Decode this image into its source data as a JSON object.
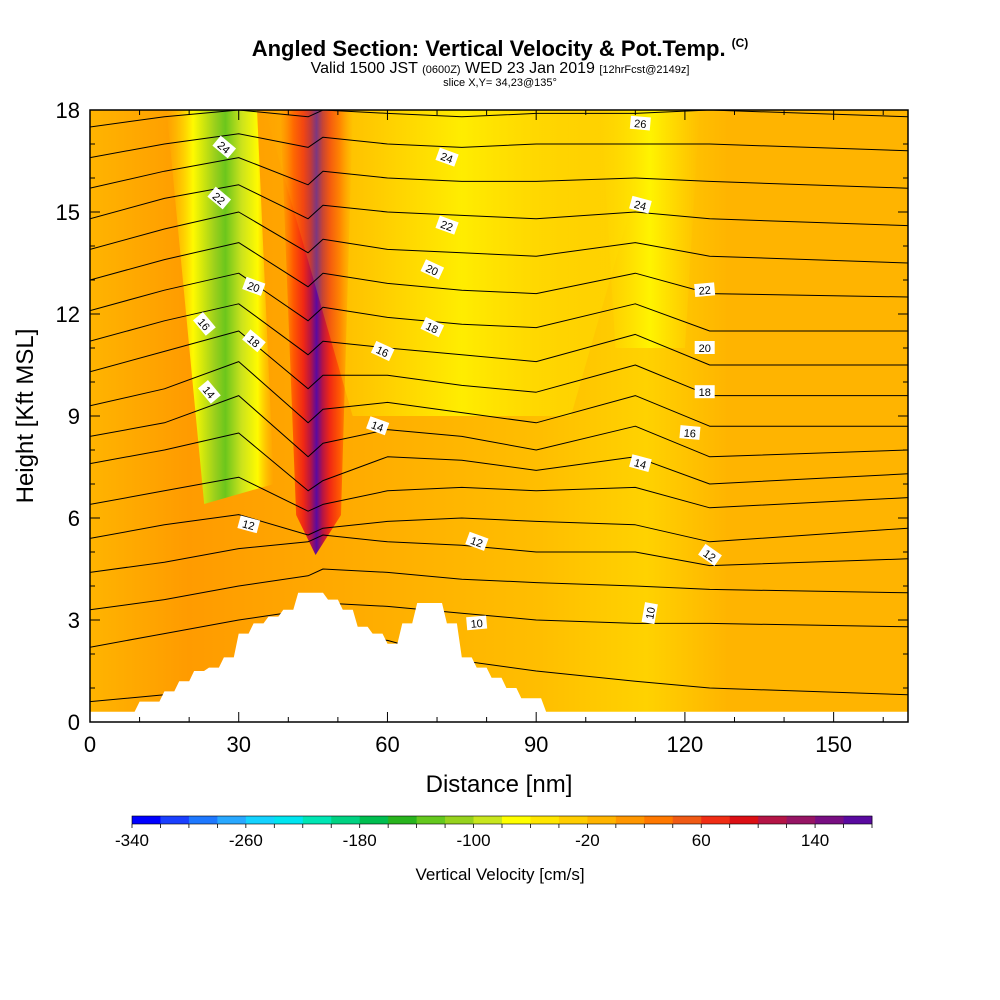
{
  "header": {
    "title": "Angled Section: Vertical Velocity & Pot.Temp.",
    "title_mark": "(C)",
    "valid_prefix": "Valid 1500 JST",
    "valid_utc": "(0600Z)",
    "valid_date": "WED 23 Jan 2019",
    "forecast": "[12hrFcst@2149z]",
    "slice": "slice X,Y= 34,23@135°"
  },
  "chart_data": {
    "type": "heatmap",
    "xlabel": "Distance [nm]",
    "ylabel": "Height [Kft MSL]",
    "xlim": [
      0,
      165
    ],
    "ylim": [
      0,
      18
    ],
    "xticks": [
      0,
      30,
      60,
      90,
      120,
      150
    ],
    "yticks": [
      0,
      3,
      6,
      9,
      12,
      15,
      18
    ],
    "grid": false,
    "colorbar": {
      "label": "Vertical Velocity [cm/s]",
      "placement": "bottom",
      "range": [
        -340,
        180
      ],
      "step": 20,
      "ticks": [
        -340,
        -260,
        -180,
        -100,
        -20,
        60,
        140
      ],
      "colors": [
        "#0000ff",
        "#1a3fff",
        "#1e78ff",
        "#28a8ff",
        "#14d2ff",
        "#00e5f0",
        "#00e6b4",
        "#00d282",
        "#00be50",
        "#28b41e",
        "#64c81e",
        "#96d21e",
        "#c8e61e",
        "#ffff00",
        "#ffe600",
        "#ffcd00",
        "#ffb400",
        "#ff9600",
        "#ff7800",
        "#f05a14",
        "#f02d14",
        "#dc0f14",
        "#b41446",
        "#961464",
        "#780f82",
        "#5a0aa0"
      ]
    },
    "velocity_features": [
      {
        "name": "updraft",
        "x": [
          44,
          47
        ],
        "y_range": [
          5.5,
          18
        ],
        "peak_cm_s": 160
      },
      {
        "name": "downdraft",
        "x": [
          19,
          28
        ],
        "y_range": [
          7,
          18
        ],
        "min_cm_s": -160
      },
      {
        "name": "weak-subsidence",
        "x": [
          108,
          118
        ],
        "y_range": [
          11,
          18
        ],
        "min_cm_s": -60
      },
      {
        "name": "weak-subsidence",
        "x": [
          55,
          95
        ],
        "y_range": [
          9,
          18
        ],
        "min_cm_s": -40
      }
    ],
    "terrain_kft": {
      "x": [
        0,
        9,
        10,
        14,
        15,
        17,
        18,
        20,
        21,
        23,
        24,
        26,
        27,
        29,
        30,
        32,
        33,
        35,
        36,
        38,
        39,
        41,
        42,
        47,
        48,
        50,
        51,
        53,
        54,
        56,
        57,
        59,
        60,
        62,
        63,
        65,
        66,
        71,
        72,
        74,
        75,
        77,
        78,
        80,
        81,
        83,
        84,
        86,
        87,
        91,
        92,
        165
      ],
      "y": [
        0.3,
        0.3,
        0.6,
        0.6,
        0.9,
        0.9,
        1.2,
        1.2,
        1.5,
        1.5,
        1.6,
        1.6,
        1.9,
        1.9,
        2.6,
        2.6,
        2.9,
        2.9,
        3.1,
        3.1,
        3.3,
        3.3,
        3.8,
        3.8,
        3.6,
        3.6,
        3.3,
        3.3,
        2.8,
        2.8,
        2.6,
        2.6,
        2.3,
        2.3,
        2.9,
        2.9,
        3.5,
        3.5,
        2.9,
        2.9,
        1.9,
        1.9,
        1.6,
        1.6,
        1.3,
        1.3,
        1.0,
        1.0,
        0.7,
        0.7,
        0.3,
        0.3
      ]
    },
    "theta_contours_c": {
      "interval": 1,
      "profile_x": [
        0,
        15,
        30,
        44,
        47,
        60,
        75,
        90,
        110,
        125,
        165
      ],
      "series": [
        {
          "y": [
            0.6,
            0.8,
            1.3,
            2.4,
            2.6,
            2.4,
            1.8,
            1.5,
            1.2,
            1.0,
            0.8
          ]
        },
        {
          "y": [
            2.2,
            2.6,
            3.0,
            3.3,
            3.5,
            3.4,
            3.2,
            3.0,
            2.9,
            2.9,
            2.8
          ]
        },
        {
          "y": [
            3.3,
            3.6,
            4.0,
            4.3,
            4.5,
            4.4,
            4.2,
            4.1,
            4.0,
            3.9,
            3.8
          ]
        },
        {
          "y": [
            4.4,
            4.7,
            5.1,
            5.3,
            5.5,
            5.3,
            5.2,
            5.0,
            5.0,
            4.6,
            4.8
          ]
        },
        {
          "y": [
            5.4,
            5.8,
            6.1,
            5.5,
            5.7,
            5.9,
            6.0,
            5.9,
            5.8,
            5.3,
            5.7
          ]
        },
        {
          "y": [
            6.4,
            6.8,
            7.2,
            6.2,
            6.4,
            6.8,
            6.9,
            6.8,
            6.9,
            6.3,
            6.6
          ]
        },
        {
          "y": [
            7.6,
            8.0,
            8.5,
            6.8,
            7.1,
            7.8,
            7.7,
            7.4,
            7.8,
            7.0,
            7.3
          ]
        },
        {
          "y": [
            8.4,
            8.8,
            9.6,
            7.8,
            8.2,
            8.6,
            8.4,
            8.0,
            8.7,
            7.8,
            8.0
          ]
        },
        {
          "y": [
            9.3,
            9.8,
            10.6,
            8.8,
            9.2,
            9.4,
            9.1,
            8.8,
            9.6,
            8.7,
            8.7
          ]
        },
        {
          "y": [
            10.3,
            10.9,
            11.5,
            9.8,
            10.2,
            10.2,
            9.9,
            9.7,
            10.5,
            9.6,
            9.6
          ]
        },
        {
          "y": [
            11.2,
            11.8,
            12.3,
            10.8,
            11.2,
            11.0,
            10.8,
            10.6,
            11.4,
            10.5,
            10.5
          ]
        },
        {
          "y": [
            12.1,
            12.7,
            13.2,
            11.8,
            12.2,
            11.9,
            11.7,
            11.6,
            12.3,
            11.5,
            11.5
          ]
        },
        {
          "y": [
            13.0,
            13.6,
            14.1,
            12.8,
            13.2,
            12.9,
            12.7,
            12.6,
            13.2,
            12.6,
            12.5
          ]
        },
        {
          "y": [
            13.9,
            14.5,
            15.0,
            13.8,
            14.2,
            13.9,
            13.8,
            13.7,
            14.1,
            13.7,
            13.5
          ]
        },
        {
          "y": [
            14.8,
            15.4,
            15.8,
            14.8,
            15.2,
            15.0,
            14.9,
            14.8,
            15.0,
            14.8,
            14.6
          ]
        },
        {
          "y": [
            15.7,
            16.2,
            16.6,
            15.8,
            16.2,
            16.0,
            15.9,
            15.9,
            16.0,
            15.9,
            15.7
          ]
        },
        {
          "y": [
            16.6,
            17.0,
            17.3,
            16.9,
            17.2,
            17.0,
            16.9,
            17.0,
            17.0,
            17.0,
            16.8
          ]
        },
        {
          "y": [
            17.5,
            17.8,
            18.0,
            17.8,
            18.0,
            17.9,
            17.8,
            17.9,
            17.9,
            18.0,
            17.8
          ]
        }
      ],
      "labels": [
        {
          "text": "10",
          "x": 78,
          "y": 2.9,
          "rotate": -5
        },
        {
          "text": "10",
          "x": 113,
          "y": 3.2,
          "rotate": -80
        },
        {
          "text": "12",
          "x": 32,
          "y": 5.8,
          "rotate": 15
        },
        {
          "text": "12",
          "x": 78,
          "y": 5.3,
          "rotate": 20
        },
        {
          "text": "12",
          "x": 125,
          "y": 4.9,
          "rotate": 35
        },
        {
          "text": "14",
          "x": 24,
          "y": 9.7,
          "rotate": 50
        },
        {
          "text": "14",
          "x": 58,
          "y": 8.7,
          "rotate": 20
        },
        {
          "text": "14",
          "x": 111,
          "y": 7.6,
          "rotate": 15
        },
        {
          "text": "16",
          "x": 23,
          "y": 11.7,
          "rotate": 50
        },
        {
          "text": "16",
          "x": 59,
          "y": 10.9,
          "rotate": 25
        },
        {
          "text": "16",
          "x": 121,
          "y": 8.5,
          "rotate": 5
        },
        {
          "text": "18",
          "x": 33,
          "y": 11.2,
          "rotate": 40
        },
        {
          "text": "18",
          "x": 69,
          "y": 11.6,
          "rotate": 25
        },
        {
          "text": "18",
          "x": 124,
          "y": 9.7,
          "rotate": 0
        },
        {
          "text": "20",
          "x": 33,
          "y": 12.8,
          "rotate": 20
        },
        {
          "text": "20",
          "x": 69,
          "y": 13.3,
          "rotate": 25
        },
        {
          "text": "20",
          "x": 124,
          "y": 11.0,
          "rotate": 0
        },
        {
          "text": "22",
          "x": 26,
          "y": 15.4,
          "rotate": 40
        },
        {
          "text": "22",
          "x": 72,
          "y": 14.6,
          "rotate": 20
        },
        {
          "text": "22",
          "x": 124,
          "y": 12.7,
          "rotate": -5
        },
        {
          "text": "24",
          "x": 27,
          "y": 16.9,
          "rotate": 40
        },
        {
          "text": "24",
          "x": 72,
          "y": 16.6,
          "rotate": 20
        },
        {
          "text": "24",
          "x": 111,
          "y": 15.2,
          "rotate": 15
        },
        {
          "text": "26",
          "x": 111,
          "y": 17.6,
          "rotate": 5
        }
      ]
    }
  }
}
